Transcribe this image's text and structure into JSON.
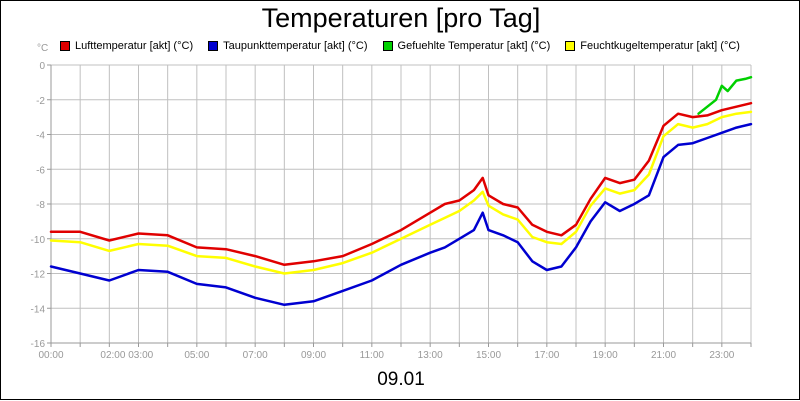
{
  "chart_data": {
    "type": "line",
    "title": "Temperaturen [pro Tag]",
    "xlabel": "09.01",
    "ylabel": "°C",
    "ylim": [
      -16,
      0
    ],
    "xlim": [
      0,
      24
    ],
    "yticks": [
      0,
      -2,
      -4,
      -6,
      -8,
      -10,
      -12,
      -14,
      -16
    ],
    "xtick_labels": [
      "00:00",
      "02:00 03:00",
      "05:00",
      "07:00",
      "09:00",
      "11:00",
      "13:00",
      "15:00",
      "17:00",
      "19:00",
      "21:00",
      "23:00"
    ],
    "xtick_hours": [
      0,
      2.6,
      5,
      7,
      9,
      11,
      13,
      15,
      17,
      19,
      21,
      23
    ],
    "grid": true,
    "legend_position": "top",
    "series": [
      {
        "name": "Lufttemperatur [akt] (°C)",
        "color": "#e00000",
        "x": [
          0,
          1,
          2,
          3,
          4,
          5,
          6,
          7,
          8,
          9,
          10,
          11,
          12,
          13,
          13.5,
          14,
          14.5,
          14.8,
          15,
          15.5,
          16,
          16.5,
          17,
          17.5,
          18,
          18.5,
          19,
          19.5,
          20,
          20.5,
          21,
          21.5,
          22,
          22.5,
          23,
          23.5,
          24
        ],
        "y": [
          -9.6,
          -9.6,
          -10.1,
          -9.7,
          -9.8,
          -10.5,
          -10.6,
          -11.0,
          -11.5,
          -11.3,
          -11.0,
          -10.3,
          -9.5,
          -8.5,
          -8.0,
          -7.8,
          -7.2,
          -6.5,
          -7.5,
          -8.0,
          -8.2,
          -9.2,
          -9.6,
          -9.8,
          -9.2,
          -7.7,
          -6.5,
          -6.8,
          -6.6,
          -5.5,
          -3.5,
          -2.8,
          -3.0,
          -2.9,
          -2.6,
          -2.4,
          -2.2
        ]
      },
      {
        "name": "Taupunkttemperatur [akt] (°C)",
        "color": "#0000d0",
        "x": [
          0,
          1,
          2,
          3,
          4,
          5,
          6,
          7,
          8,
          9,
          10,
          11,
          12,
          13,
          13.5,
          14,
          14.5,
          14.8,
          15,
          15.5,
          16,
          16.5,
          17,
          17.5,
          18,
          18.5,
          19,
          19.5,
          20,
          20.5,
          21,
          21.5,
          22,
          22.5,
          23,
          23.5,
          24
        ],
        "y": [
          -11.6,
          -12.0,
          -12.4,
          -11.8,
          -11.9,
          -12.6,
          -12.8,
          -13.4,
          -13.8,
          -13.6,
          -13.0,
          -12.4,
          -11.5,
          -10.8,
          -10.5,
          -10.0,
          -9.5,
          -8.5,
          -9.5,
          -9.8,
          -10.2,
          -11.3,
          -11.8,
          -11.6,
          -10.5,
          -9.0,
          -7.9,
          -8.4,
          -8.0,
          -7.5,
          -5.3,
          -4.6,
          -4.5,
          -4.2,
          -3.9,
          -3.6,
          -3.4
        ]
      },
      {
        "name": "Gefuehlte Temperatur [akt] (°C)",
        "color": "#00d000",
        "x": [
          22.2,
          22.5,
          22.8,
          23.0,
          23.2,
          23.5,
          23.8,
          24
        ],
        "y": [
          -2.8,
          -2.4,
          -2.0,
          -1.2,
          -1.5,
          -0.9,
          -0.8,
          -0.7
        ]
      },
      {
        "name": "Feuchtkugeltemperatur [akt] (°C)",
        "color": "#ffff00",
        "x": [
          0,
          1,
          2,
          3,
          4,
          5,
          6,
          7,
          8,
          9,
          10,
          11,
          12,
          13,
          13.5,
          14,
          14.5,
          14.8,
          15,
          15.5,
          16,
          16.5,
          17,
          17.5,
          18,
          18.5,
          19,
          19.5,
          20,
          20.5,
          21,
          21.5,
          22,
          22.5,
          23,
          23.5,
          24
        ],
        "y": [
          -10.1,
          -10.2,
          -10.7,
          -10.3,
          -10.4,
          -11.0,
          -11.1,
          -11.6,
          -12.0,
          -11.8,
          -11.4,
          -10.8,
          -10.0,
          -9.2,
          -8.8,
          -8.4,
          -7.8,
          -7.3,
          -8.1,
          -8.6,
          -8.9,
          -9.9,
          -10.2,
          -10.3,
          -9.6,
          -8.1,
          -7.1,
          -7.4,
          -7.2,
          -6.3,
          -4.1,
          -3.4,
          -3.6,
          -3.4,
          -3.0,
          -2.8,
          -2.7
        ]
      }
    ]
  }
}
